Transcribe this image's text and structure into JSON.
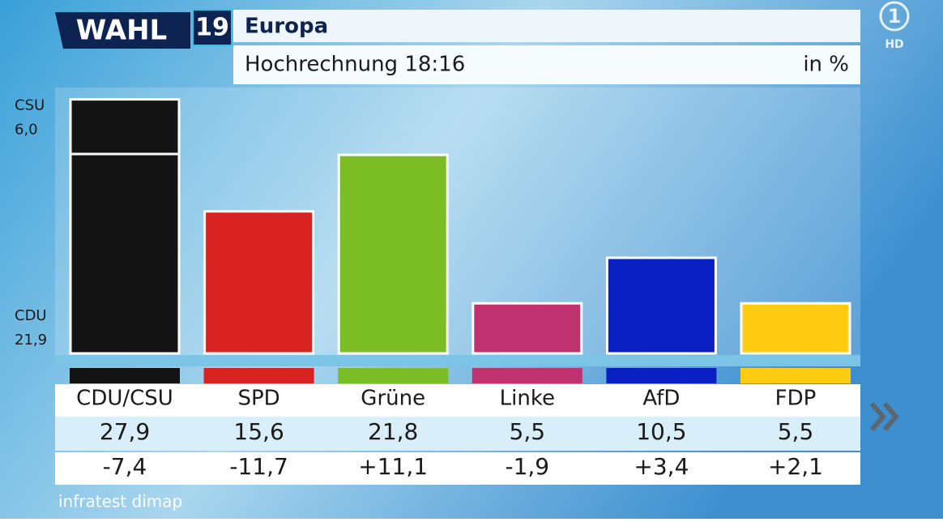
{
  "branding": {
    "show": "WAHL",
    "year": "19",
    "channel": "1",
    "quality": "HD"
  },
  "chart_data": {
    "type": "bar",
    "title": "Europa",
    "subtitle": "Hochrechnung 18:16",
    "unit": "in %",
    "source": "infratest dimap",
    "categories": [
      "CDU/CSU",
      "SPD",
      "Grüne",
      "Linke",
      "AfD",
      "FDP"
    ],
    "values": [
      27.9,
      15.6,
      21.8,
      5.5,
      10.5,
      5.5
    ],
    "value_labels": [
      "27,9",
      "15,6",
      "21,8",
      "5,5",
      "10,5",
      "5,5"
    ],
    "changes": [
      -7.4,
      -11.7,
      11.1,
      -1.9,
      3.4,
      2.1
    ],
    "change_labels": [
      "-7,4",
      "-11,7",
      "+11,1",
      "-1,9",
      "+3,4",
      "+2,1"
    ],
    "colors": [
      "#141414",
      "#d82222",
      "#7abd24",
      "#c0326f",
      "#0a20c2",
      "#ffcc12"
    ],
    "segments": [
      [
        {
          "name": "CDU",
          "value": 21.9,
          "value_label": "21,9"
        },
        {
          "name": "CSU",
          "value": 6.0,
          "value_label": "6,0"
        }
      ],
      null,
      null,
      null,
      null,
      null
    ],
    "ylim": [
      0,
      30
    ]
  }
}
